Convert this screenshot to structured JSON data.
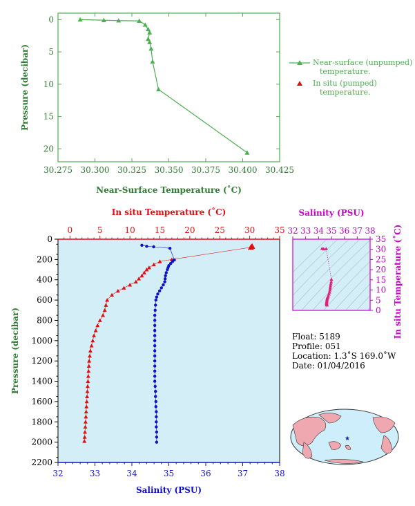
{
  "colors": {
    "green": "#4caf50",
    "axis_green": "#4caf50",
    "label_green": "#2e7d32",
    "red": "#e01010",
    "blue": "#1010c8",
    "magenta": "#c800c8",
    "plot_bg": "#d4eef8",
    "land": "#f0a8b0",
    "ocean": "#cdeefa"
  },
  "legend": {
    "item1": "Near-surface (unpumped)",
    "item1b": "temperature.",
    "item2": "In situ (pumped)",
    "item2b": "temperature."
  },
  "info": {
    "float": "Float:  5189",
    "profile": "Profile:  051",
    "location": "Location:  1.3˚S  169.0˚W",
    "date": "Date:  01/04/2016"
  },
  "chart_data": [
    {
      "type": "line",
      "name": "near-surface",
      "xlabel": "Near-Surface Temperature (˚C)",
      "ylabel": "Pressure (decibar)",
      "xlim": [
        30.275,
        30.425
      ],
      "ylim": [
        22,
        -1
      ],
      "xticks": [
        "30.275",
        "30.300",
        "30.325",
        "30.350",
        "30.375",
        "30.400",
        "30.425"
      ],
      "yticks": [
        "0",
        "5",
        "10",
        "15",
        "20"
      ],
      "series": [
        {
          "name": "Near-surface (unpumped) temperature.",
          "points": [
            [
              30.29,
              0.0
            ],
            [
              30.306,
              0.1
            ],
            [
              30.316,
              0.15
            ],
            [
              30.33,
              0.2
            ],
            [
              30.334,
              0.8
            ],
            [
              30.336,
              1.5
            ],
            [
              30.337,
              2.0
            ],
            [
              30.336,
              3.0
            ],
            [
              30.337,
              3.5
            ],
            [
              30.338,
              4.5
            ],
            [
              30.339,
              6.5
            ],
            [
              30.343,
              10.8
            ],
            [
              30.403,
              20.6
            ]
          ]
        }
      ]
    },
    {
      "type": "scatter",
      "name": "profile",
      "ylabel": "Pressure (decibar)",
      "temp_label": "In situ Temperature (˚C)",
      "sal_label": "Salinity (PSU)",
      "ylim": [
        2200,
        0
      ],
      "temp_lim": [
        -2,
        35
      ],
      "sal_lim": [
        32,
        38
      ],
      "temp_ticks": [
        "0",
        "5",
        "10",
        "15",
        "20",
        "25",
        "30",
        "35"
      ],
      "sal_ticks": [
        "32",
        "33",
        "34",
        "35",
        "36",
        "37",
        "38"
      ],
      "pressure_ticks": [
        "0",
        "200",
        "400",
        "600",
        "800",
        "1000",
        "1200",
        "1400",
        "1600",
        "1800",
        "2000",
        "2200"
      ],
      "temperature": [
        [
          30.4,
          70
        ],
        [
          30.2,
          80
        ],
        [
          17.0,
          200
        ],
        [
          15.0,
          220
        ],
        [
          14.0,
          250
        ],
        [
          13.2,
          280
        ],
        [
          12.8,
          300
        ],
        [
          12.4,
          330
        ],
        [
          12.0,
          360
        ],
        [
          11.5,
          390
        ],
        [
          11.0,
          420
        ],
        [
          10.0,
          450
        ],
        [
          9.0,
          480
        ],
        [
          8.0,
          510
        ],
        [
          7.0,
          550
        ],
        [
          6.2,
          600
        ],
        [
          6.0,
          650
        ],
        [
          5.8,
          700
        ],
        [
          5.5,
          750
        ],
        [
          5.0,
          800
        ],
        [
          4.6,
          850
        ],
        [
          4.3,
          900
        ],
        [
          4.0,
          950
        ],
        [
          3.8,
          1000
        ],
        [
          3.6,
          1050
        ],
        [
          3.4,
          1100
        ],
        [
          3.3,
          1150
        ],
        [
          3.2,
          1200
        ],
        [
          3.15,
          1250
        ],
        [
          3.1,
          1300
        ],
        [
          3.05,
          1350
        ],
        [
          3.0,
          1400
        ],
        [
          2.95,
          1450
        ],
        [
          2.9,
          1500
        ],
        [
          2.85,
          1550
        ],
        [
          2.8,
          1600
        ],
        [
          2.75,
          1650
        ],
        [
          2.7,
          1700
        ],
        [
          2.65,
          1750
        ],
        [
          2.6,
          1800
        ],
        [
          2.55,
          1850
        ],
        [
          2.5,
          1900
        ],
        [
          2.45,
          1950
        ],
        [
          2.4,
          1990
        ]
      ],
      "salinity": [
        [
          34.27,
          60
        ],
        [
          34.4,
          70
        ],
        [
          34.59,
          75
        ],
        [
          35.03,
          90
        ],
        [
          35.15,
          205
        ],
        [
          35.1,
          220
        ],
        [
          35.05,
          240
        ],
        [
          35.0,
          260
        ],
        [
          34.98,
          280
        ],
        [
          34.96,
          300
        ],
        [
          34.93,
          330
        ],
        [
          34.91,
          360
        ],
        [
          34.9,
          390
        ],
        [
          34.89,
          420
        ],
        [
          34.85,
          450
        ],
        [
          34.8,
          480
        ],
        [
          34.75,
          510
        ],
        [
          34.7,
          540
        ],
        [
          34.67,
          570
        ],
        [
          34.65,
          600
        ],
        [
          34.64,
          650
        ],
        [
          34.63,
          700
        ],
        [
          34.62,
          750
        ],
        [
          34.62,
          800
        ],
        [
          34.62,
          850
        ],
        [
          34.62,
          900
        ],
        [
          34.62,
          950
        ],
        [
          34.62,
          1000
        ],
        [
          34.62,
          1050
        ],
        [
          34.62,
          1100
        ],
        [
          34.62,
          1150
        ],
        [
          34.62,
          1200
        ],
        [
          34.62,
          1250
        ],
        [
          34.62,
          1300
        ],
        [
          34.62,
          1350
        ],
        [
          34.62,
          1400
        ],
        [
          34.63,
          1450
        ],
        [
          34.64,
          1500
        ],
        [
          34.64,
          1550
        ],
        [
          34.65,
          1600
        ],
        [
          34.65,
          1650
        ],
        [
          34.66,
          1700
        ],
        [
          34.66,
          1750
        ],
        [
          34.66,
          1800
        ],
        [
          34.66,
          1850
        ],
        [
          34.67,
          1900
        ],
        [
          34.67,
          1950
        ],
        [
          34.67,
          2000
        ]
      ]
    },
    {
      "type": "scatter",
      "name": "ts",
      "xlabel": "Salinity (PSU)",
      "ylabel": "In situ Temperature (˚C)",
      "xlim": [
        32,
        38
      ],
      "ylim": [
        0,
        35
      ],
      "xticks": [
        "32",
        "33",
        "34",
        "35",
        "36",
        "37",
        "38"
      ],
      "yticks": [
        "0",
        "5",
        "10",
        "15",
        "20",
        "25",
        "30",
        "35"
      ],
      "points": [
        [
          34.27,
          30.4
        ],
        [
          34.4,
          30.2
        ],
        [
          34.59,
          30.3
        ],
        [
          35.0,
          15.2
        ],
        [
          34.98,
          14.0
        ],
        [
          34.95,
          13.0
        ],
        [
          34.92,
          12.0
        ],
        [
          34.9,
          11.0
        ],
        [
          34.88,
          10.0
        ],
        [
          34.85,
          9.0
        ],
        [
          34.8,
          8.0
        ],
        [
          34.75,
          7.0
        ],
        [
          34.7,
          6.5
        ],
        [
          34.68,
          6.0
        ],
        [
          34.66,
          5.5
        ],
        [
          34.65,
          5.0
        ],
        [
          34.64,
          4.5
        ],
        [
          34.63,
          4.0
        ],
        [
          34.62,
          3.6
        ],
        [
          34.62,
          3.2
        ],
        [
          34.63,
          2.9
        ],
        [
          34.65,
          2.6
        ]
      ]
    }
  ]
}
